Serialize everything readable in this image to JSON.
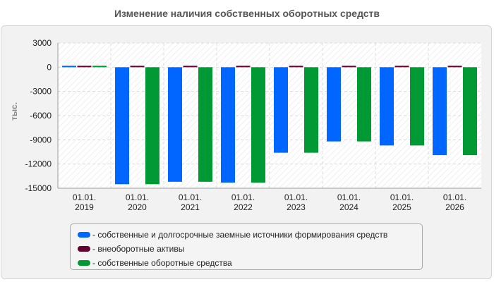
{
  "title": "Изменение наличия собственных оборотных средств",
  "chart_data": {
    "type": "bar",
    "categories": [
      {
        "line1": "01.01.",
        "line2": "2019"
      },
      {
        "line1": "01.01.",
        "line2": "2020"
      },
      {
        "line1": "01.01.",
        "line2": "2021"
      },
      {
        "line1": "01.01.",
        "line2": "2022"
      },
      {
        "line1": "01.01.",
        "line2": "2023"
      },
      {
        "line1": "01.01.",
        "line2": "2024"
      },
      {
        "line1": "01.01.",
        "line2": "2025"
      },
      {
        "line1": "01.01.",
        "line2": "2026"
      }
    ],
    "series": [
      {
        "name": "- собственные и долгосрочные заемные источники формирования средств",
        "color": "#0066ff",
        "values": [
          60,
          -14500,
          -14200,
          -14300,
          -10600,
          -9200,
          -9700,
          -10900
        ]
      },
      {
        "name": "- внеоборотные активы",
        "color": "#660033",
        "values": [
          50,
          40,
          40,
          40,
          40,
          40,
          40,
          40
        ]
      },
      {
        "name": "- собственные оборотные средства",
        "color": "#009933",
        "values": [
          60,
          -14500,
          -14200,
          -14300,
          -10600,
          -9200,
          -9700,
          -10900
        ]
      }
    ],
    "ylabel": "тыс.",
    "ylim": [
      -15000,
      3000
    ],
    "yticks": [
      3000,
      0,
      -3000,
      -6000,
      -9000,
      -12000,
      -15000
    ],
    "grid": true,
    "legend_position": "bottom"
  }
}
